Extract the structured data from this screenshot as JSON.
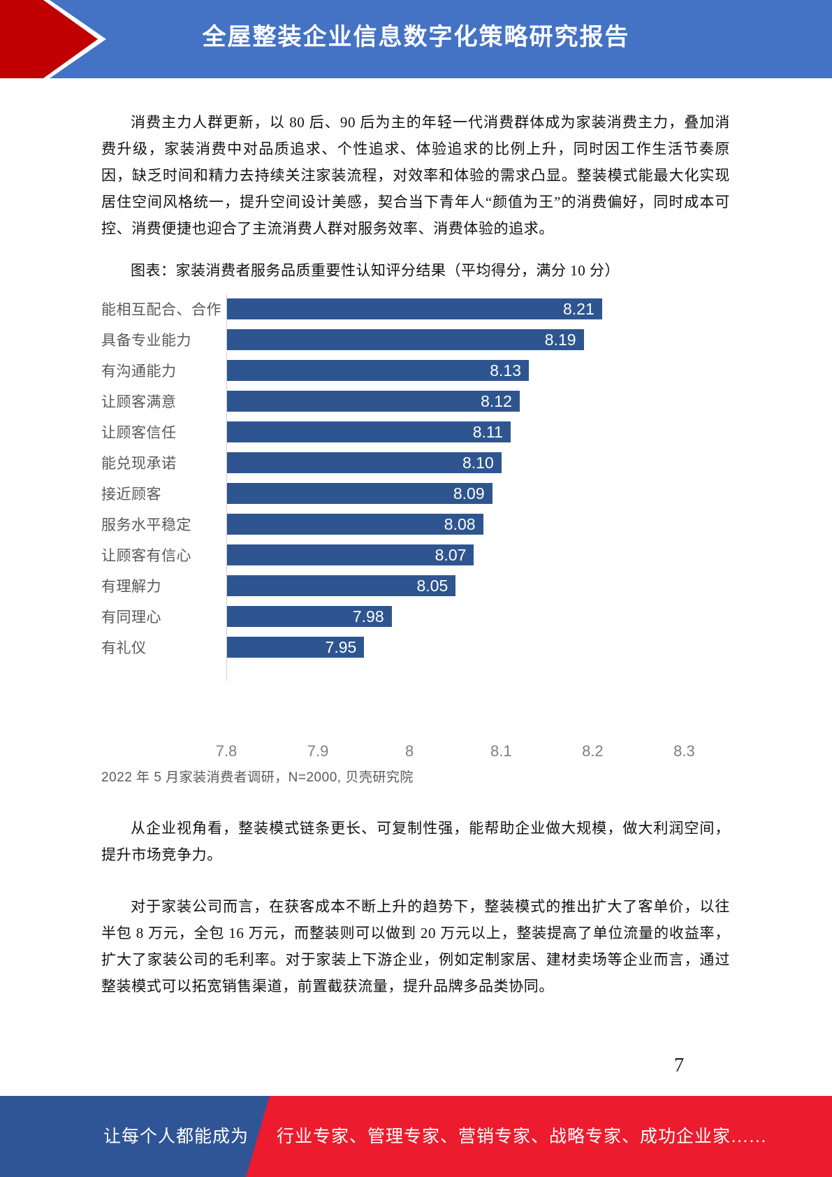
{
  "header": {
    "title": "全屋整装企业信息数字化策略研究报告"
  },
  "body": {
    "p1": "消费主力人群更新，以 80 后、90 后为主的年轻一代消费群体成为家装消费主力，叠加消费升级，家装消费中对品质追求、个性追求、体验追求的比例上升，同时因工作生活节奏原因，缺乏时间和精力去持续关注家装流程，对效率和体验的需求凸显。整装模式能最大化实现居住空间风格统一，提升空间设计美感，契合当下青年人“颜值为王”的消费偏好，同时成本可控、消费便捷也迎合了主流消费人群对服务效率、消费体验的追求。",
    "chart_caption": "图表：家装消费者服务品质重要性认知评分结果（平均得分，满分 10 分）",
    "p2": "从企业视角看，整装模式链条更长、可复制性强，能帮助企业做大规模，做大利润空间，提升市场竞争力。",
    "p3": "对于家装公司而言，在获客成本不断上升的趋势下，整装模式的推出扩大了客单价，以往半包 8 万元，全包 16 万元，而整装则可以做到 20 万元以上，整装提高了单位流量的收益率，扩大了家装公司的毛利率。对于家装上下游企业，例如定制家居、建材卖场等企业而言，通过整装模式可以拓宽销售渠道，前置截获流量，提升品牌多品类协同。"
  },
  "chart_data": {
    "type": "bar",
    "orientation": "horizontal",
    "title": "家装消费者服务品质重要性认知评分结果（平均得分，满分 10 分）",
    "categories": [
      "能相互配合、合作",
      "具备专业能力",
      "有沟通能力",
      "让顾客满意",
      "让顾客信任",
      "能兑现承诺",
      "接近顾客",
      "服务水平稳定",
      "让顾客有信心",
      "有理解力",
      "有同理心",
      "有礼仪"
    ],
    "values": [
      8.21,
      8.19,
      8.13,
      8.12,
      8.11,
      8.1,
      8.09,
      8.08,
      8.07,
      8.05,
      7.98,
      7.95
    ],
    "value_labels": [
      "8.21",
      "8.19",
      "8.13",
      "8.12",
      "8.11",
      "8.10",
      "8.09",
      "8.08",
      "8.07",
      "8.05",
      "7.98",
      "7.95"
    ],
    "x_tick_labels": [
      "7.8",
      "7.9",
      "8",
      "8.1",
      "8.2",
      "8.3"
    ],
    "x_tick_values": [
      7.8,
      7.9,
      8.0,
      8.1,
      8.2,
      8.3
    ],
    "xlim": [
      7.8,
      8.35
    ],
    "grid": false,
    "legend": "none",
    "bar_color": "#2E5590",
    "value_label_color": "#FFFFFF",
    "source": "2022 年 5 月家装消费者调研，N=2000, 贝壳研究院"
  },
  "page": {
    "number": "7"
  },
  "footer": {
    "left_text": "让每个人都能成为",
    "right_text": "行业专家、管理专家、营销专家、战略专家、成功企业家……"
  },
  "colors": {
    "header_bg": "#4472C4",
    "header_arrow_red": "#C00000",
    "bar": "#2E5590",
    "footer_blue": "#2F5597",
    "footer_red": "#EC1B2D"
  }
}
